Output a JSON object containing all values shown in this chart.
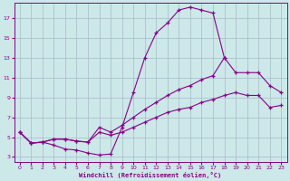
{
  "xlabel": "Windchill (Refroidissement éolien,°C)",
  "bg_color": "#cce8e8",
  "grid_color": "#aab8cc",
  "line_color": "#880088",
  "xlim": [
    -0.5,
    23.5
  ],
  "ylim": [
    2.5,
    18.5
  ],
  "xticks": [
    0,
    1,
    2,
    3,
    4,
    5,
    6,
    7,
    8,
    9,
    10,
    11,
    12,
    13,
    14,
    15,
    16,
    17,
    18,
    19,
    20,
    21,
    22,
    23
  ],
  "yticks": [
    3,
    5,
    7,
    9,
    11,
    13,
    15,
    17
  ],
  "line1_x": [
    0,
    1,
    2,
    3,
    4,
    5,
    6,
    7,
    8,
    9,
    10,
    11,
    12,
    13,
    14,
    15,
    16,
    17,
    18,
    19,
    20,
    21,
    22,
    23
  ],
  "line1_y": [
    5.5,
    4.4,
    4.5,
    4.2,
    3.8,
    3.7,
    3.4,
    3.2,
    3.3,
    6.0,
    9.5,
    13.0,
    15.5,
    16.5,
    17.8,
    18.1,
    17.8,
    17.5,
    13.0,
    null,
    null,
    null,
    null,
    null
  ],
  "line2_x": [
    0,
    1,
    2,
    3,
    4,
    5,
    6,
    7,
    8,
    9,
    10,
    11,
    12,
    13,
    14,
    15,
    16,
    17,
    18,
    19,
    20,
    21,
    22,
    23
  ],
  "line2_y": [
    5.5,
    4.4,
    4.5,
    4.8,
    4.8,
    4.6,
    4.5,
    6.0,
    5.5,
    6.2,
    7.0,
    7.8,
    8.5,
    9.2,
    9.8,
    10.2,
    10.8,
    11.2,
    13.0,
    11.5,
    11.5,
    11.5,
    10.2,
    9.5
  ],
  "line3_x": [
    0,
    1,
    2,
    3,
    4,
    5,
    6,
    7,
    8,
    9,
    10,
    11,
    12,
    13,
    14,
    15,
    16,
    17,
    18,
    19,
    20,
    21,
    22,
    23
  ],
  "line3_y": [
    5.5,
    4.4,
    4.5,
    4.8,
    4.8,
    4.6,
    4.5,
    5.5,
    5.2,
    5.5,
    6.0,
    6.5,
    7.0,
    7.5,
    7.8,
    8.0,
    8.5,
    8.8,
    9.2,
    9.5,
    9.2,
    9.2,
    8.0,
    8.2
  ]
}
